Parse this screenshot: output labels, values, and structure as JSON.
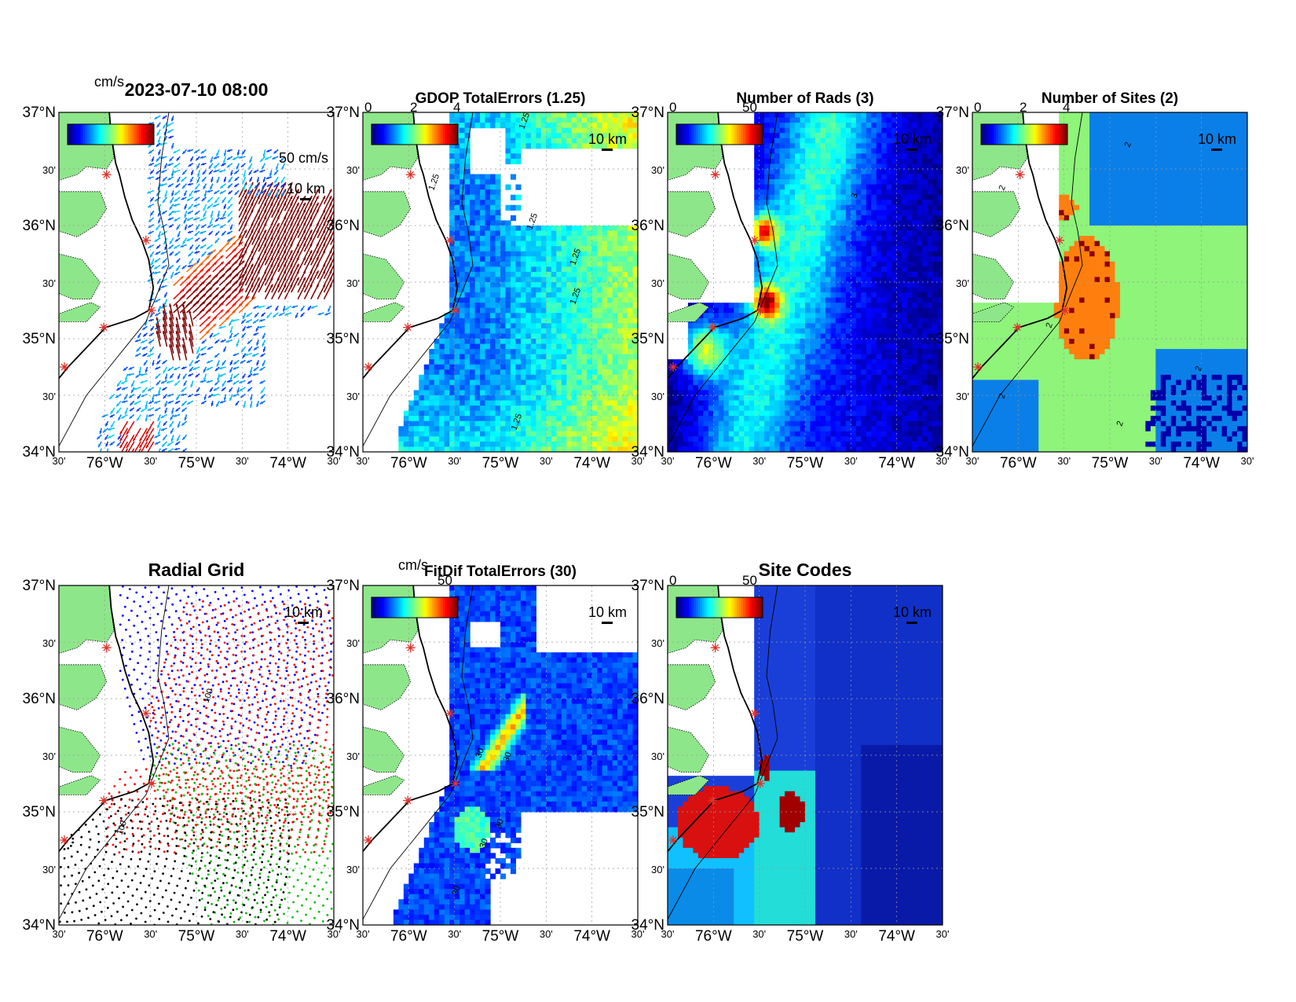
{
  "figure": {
    "panels": [
      {
        "id": "vectors",
        "title": "2023-07-10 08:00",
        "title_bold": true,
        "cb_unit": "cm/s",
        "cb_ticks": [],
        "scale_label": "50 cm/s",
        "km_label": "10 km",
        "kind": "vectors",
        "contours": []
      },
      {
        "id": "gdop",
        "title": "GDOP TotalErrors (1.25)",
        "title_bold": true,
        "cb_unit": "",
        "cb_ticks": [
          "0",
          "2",
          "4"
        ],
        "scale_label": "",
        "km_label": "10 km",
        "kind": "gdop",
        "contours": [
          "1.25",
          "1.25",
          "1.25",
          "1.25",
          "1.25",
          "1.25"
        ]
      },
      {
        "id": "nrads",
        "title": "Number of Rads (3)",
        "title_bold": true,
        "cb_unit": "",
        "cb_ticks": [
          "0",
          "50"
        ],
        "scale_label": "",
        "km_label": "10 km",
        "kind": "nrads",
        "contours": [
          "3"
        ]
      },
      {
        "id": "nsites",
        "title": "Number of Sites (2)",
        "title_bold": true,
        "cb_unit": "",
        "cb_ticks": [
          "0",
          "2",
          "4"
        ],
        "scale_label": "",
        "km_label": "10 km",
        "kind": "nsites",
        "contours": [
          "2",
          "2",
          "2",
          "2",
          "2",
          "2"
        ]
      },
      {
        "id": "radial",
        "title": "Radial Grid",
        "title_bold": true,
        "cb_unit": "",
        "cb_ticks": [],
        "scale_label": "",
        "km_label": "10 km",
        "kind": "radial",
        "contours": [
          "100",
          "100"
        ]
      },
      {
        "id": "fitdif",
        "title": "FitDif TotalErrors (30)",
        "title_bold": true,
        "cb_unit": "cm/s",
        "cb_ticks": [
          "50"
        ],
        "scale_label": "",
        "km_label": "10 km",
        "kind": "fitdif",
        "contours": [
          "30",
          "30",
          "30",
          "30",
          "30"
        ]
      },
      {
        "id": "sitecodes",
        "title": "Site Codes",
        "title_bold": true,
        "cb_unit": "",
        "cb_ticks": [
          "0",
          "50"
        ],
        "scale_label": "",
        "km_label": "10 km",
        "kind": "sitecodes",
        "contours": []
      }
    ],
    "lat_labels": [
      "37°N",
      "30'",
      "36°N",
      "30'",
      "35°N",
      "30'",
      "34°N"
    ],
    "lon_labels": [
      "30'",
      "76°W",
      "30'",
      "75°W",
      "30'",
      "74°W",
      "30'"
    ],
    "lon_range": [
      -76.5,
      -73.5
    ],
    "lat_range": [
      34.0,
      37.0
    ],
    "radar_sites": [
      [
        -75.98,
        36.45
      ],
      [
        -75.55,
        35.87
      ],
      [
        -75.49,
        35.25
      ],
      [
        -76.01,
        35.1
      ],
      [
        -76.44,
        34.75
      ]
    ],
    "colors": {
      "land": "#8ee68a",
      "coast": "#000000",
      "site_marker": "#e0332a",
      "ocean_blank": "#ffffff"
    }
  }
}
